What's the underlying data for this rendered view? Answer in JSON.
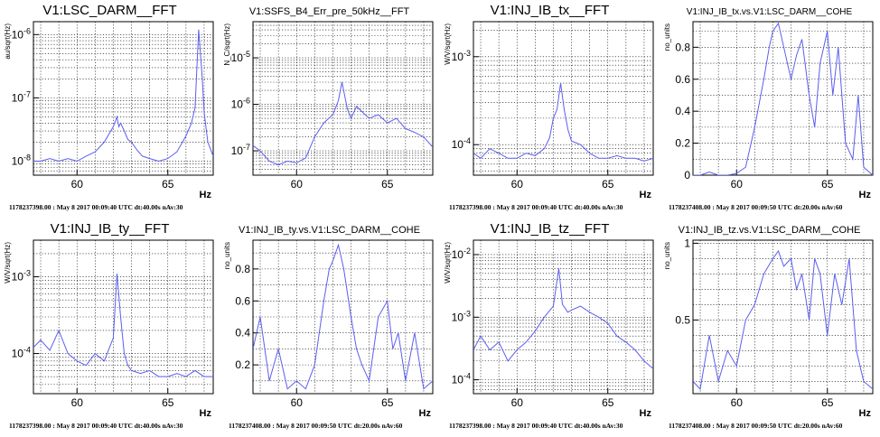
{
  "chart_data": [
    {
      "type": "line",
      "title": "V1:LSC_DARM__FFT",
      "ylabel": "au/sqrt(Hz)",
      "xlabel": "Hz",
      "footer": "1178237398.00 : May  8 2017 00:09:40 UTC dt:40.00s nAv:30",
      "yscale": "log",
      "xlim": [
        57.6,
        67.5
      ],
      "ylim": [
        6e-09,
        1.6e-06
      ],
      "xticks": [
        {
          "v": 60,
          "label": "60"
        },
        {
          "v": 65,
          "label": "65"
        }
      ],
      "yticks": [
        {
          "v": 1e-08,
          "base": "10",
          "exp": "-8"
        },
        {
          "v": 1e-07,
          "base": "10",
          "exp": "-7"
        },
        {
          "v": 1e-06,
          "base": "10",
          "exp": "-6"
        }
      ],
      "grid": true,
      "series": [
        {
          "x": [
            57.6,
            58.0,
            58.5,
            59.0,
            59.5,
            60.0,
            60.5,
            61.0,
            61.5,
            61.8,
            62.0,
            62.2,
            62.3,
            62.4,
            62.6,
            62.8,
            63.0,
            63.3,
            63.6,
            64.0,
            64.5,
            65.0,
            65.5,
            66.0,
            66.3,
            66.5,
            66.7,
            66.9,
            67.0,
            67.2,
            67.5
          ],
          "y": [
            1e-08,
            1e-08,
            1.1e-08,
            1e-08,
            1.1e-08,
            1e-08,
            1.2e-08,
            1.4e-08,
            2e-08,
            2.8e-08,
            3.5e-08,
            5e-08,
            3.5e-08,
            4e-08,
            3e-08,
            2.2e-08,
            2e-08,
            1.5e-08,
            1.2e-08,
            1.1e-08,
            1e-08,
            1.1e-08,
            1.4e-08,
            2.5e-08,
            4e-08,
            7e-08,
            1.2e-06,
            2e-07,
            6e-08,
            2e-08,
            1.2e-08
          ]
        }
      ]
    },
    {
      "type": "line",
      "title": "V1:SSFS_B4_Err_pre_50kHz__FFT",
      "ylabel": "N_C/sqrt(Hz)",
      "xlabel": "",
      "footer": "",
      "yscale": "log",
      "xlim": [
        57.6,
        67.5
      ],
      "ylim": [
        3e-08,
        6e-05
      ],
      "xticks": [
        {
          "v": 60,
          "label": "60"
        },
        {
          "v": 65,
          "label": "65"
        }
      ],
      "yticks": [
        {
          "v": 1e-07,
          "base": "10",
          "exp": "-7"
        },
        {
          "v": 1e-06,
          "base": "10",
          "exp": "-6"
        },
        {
          "v": 1e-05,
          "base": "10",
          "exp": "-5"
        }
      ],
      "grid": true,
      "series": [
        {
          "x": [
            57.6,
            58.0,
            58.5,
            59.0,
            59.5,
            60.0,
            60.5,
            61.0,
            61.5,
            62.0,
            62.3,
            62.5,
            62.8,
            63.0,
            63.3,
            63.6,
            64.0,
            64.5,
            65.0,
            65.5,
            66.0,
            66.5,
            67.0,
            67.5
          ],
          "y": [
            1.3e-07,
            1e-07,
            6e-08,
            5e-08,
            6e-08,
            5.5e-08,
            7e-08,
            2e-07,
            4e-07,
            6e-07,
            1.2e-06,
            3e-06,
            8e-07,
            5e-07,
            9e-07,
            7e-07,
            5e-07,
            6e-07,
            4e-07,
            5e-07,
            3e-07,
            2.5e-07,
            2e-07,
            1.2e-07
          ]
        }
      ]
    },
    {
      "type": "line",
      "title": "V1:INJ_IB_tx__FFT",
      "ylabel": "W/V/sqrt(Hz)",
      "xlabel": "Hz",
      "footer": "1178237398.00 : May  8 2017 00:09:40 UTC dt:40.00s nAv:30",
      "yscale": "log",
      "xlim": [
        57.6,
        67.5
      ],
      "ylim": [
        4.5e-05,
        0.0025
      ],
      "xticks": [
        {
          "v": 60,
          "label": "60"
        },
        {
          "v": 65,
          "label": "65"
        }
      ],
      "yticks": [
        {
          "v": 0.0001,
          "base": "10",
          "exp": "-4"
        },
        {
          "v": 0.001,
          "base": "10",
          "exp": "-3"
        }
      ],
      "grid": true,
      "series": [
        {
          "x": [
            57.6,
            58.0,
            58.5,
            59.0,
            59.5,
            60.0,
            60.5,
            61.0,
            61.5,
            61.8,
            62.0,
            62.2,
            62.4,
            62.6,
            62.8,
            63.0,
            63.5,
            64.0,
            64.5,
            65.0,
            65.5,
            66.0,
            66.5,
            67.0,
            67.5
          ],
          "y": [
            8e-05,
            7e-05,
            9e-05,
            8e-05,
            7e-05,
            7e-05,
            8e-05,
            7.5e-05,
            9e-05,
            0.00012,
            0.0002,
            0.00025,
            0.0005,
            0.00025,
            0.00015,
            0.00011,
            0.0001,
            8e-05,
            7e-05,
            7e-05,
            7.5e-05,
            7e-05,
            7e-05,
            6.5e-05,
            7e-05
          ]
        }
      ]
    },
    {
      "type": "line",
      "title": "V1:INJ_IB_tx.vs.V1:LSC_DARM__COHE",
      "ylabel": "no_units",
      "xlabel": "Hz",
      "footer": "1178237408.00 : May  8 2017 00:09:50 UTC dt:20.00s nAv:60",
      "yscale": "linear",
      "xlim": [
        57.6,
        67.5
      ],
      "ylim": [
        0,
        0.96
      ],
      "xticks": [
        {
          "v": 60,
          "label": "60"
        },
        {
          "v": 65,
          "label": "65"
        }
      ],
      "yticks": [
        {
          "v": 0,
          "label": "0"
        },
        {
          "v": 0.2,
          "label": "0.2"
        },
        {
          "v": 0.4,
          "label": "0.4"
        },
        {
          "v": 0.6,
          "label": "0.6"
        },
        {
          "v": 0.8,
          "label": "0.8"
        }
      ],
      "grid": true,
      "series": [
        {
          "x": [
            57.6,
            58.0,
            58.5,
            59.0,
            59.5,
            60.0,
            60.5,
            61.0,
            61.5,
            61.8,
            62.0,
            62.3,
            62.6,
            63.0,
            63.3,
            63.6,
            64.0,
            64.3,
            64.6,
            65.0,
            65.3,
            65.6,
            66.0,
            66.4,
            66.7,
            67.0,
            67.5
          ],
          "y": [
            0.0,
            0.0,
            0.02,
            0.0,
            0.0,
            0.01,
            0.05,
            0.3,
            0.6,
            0.8,
            0.9,
            0.95,
            0.8,
            0.6,
            0.75,
            0.85,
            0.5,
            0.3,
            0.7,
            0.9,
            0.5,
            0.8,
            0.2,
            0.1,
            0.5,
            0.05,
            0.0
          ]
        }
      ]
    },
    {
      "type": "line",
      "title": "V1:INJ_IB_ty__FFT",
      "ylabel": "W/V/sqrt(Hz)",
      "xlabel": "Hz",
      "footer": "1178237398.00 : May  8 2017 00:09:40 UTC dt:40.00s nAv:30",
      "yscale": "log",
      "xlim": [
        57.6,
        67.5
      ],
      "ylim": [
        3e-05,
        0.003
      ],
      "xticks": [
        {
          "v": 60,
          "label": "60"
        },
        {
          "v": 65,
          "label": "65"
        }
      ],
      "yticks": [
        {
          "v": 0.0001,
          "base": "10",
          "exp": "-4"
        },
        {
          "v": 0.001,
          "base": "10",
          "exp": "-3"
        }
      ],
      "grid": true,
      "series": [
        {
          "x": [
            57.6,
            58.0,
            58.5,
            59.0,
            59.5,
            60.0,
            60.5,
            61.0,
            61.5,
            62.0,
            62.2,
            62.4,
            62.6,
            62.8,
            63.0,
            63.5,
            64.0,
            64.5,
            65.0,
            65.5,
            66.0,
            66.5,
            67.0,
            67.5
          ],
          "y": [
            0.00012,
            0.00015,
            0.00011,
            0.0002,
            0.0001,
            8e-05,
            7e-05,
            0.0001,
            8e-05,
            0.00016,
            0.0011,
            0.0003,
            0.0001,
            7e-05,
            6e-05,
            5.5e-05,
            6e-05,
            5e-05,
            5e-05,
            5.5e-05,
            5e-05,
            6e-05,
            5e-05,
            5e-05
          ]
        }
      ]
    },
    {
      "type": "line",
      "title": "V1:INJ_IB_ty.vs.V1:LSC_DARM__COHE",
      "ylabel": "no_units",
      "xlabel": "Hz",
      "footer": "1178237408.00 : May  8 2017 00:09:50 UTC dt:20.00s nAv:60",
      "yscale": "linear",
      "xlim": [
        57.6,
        67.5
      ],
      "ylim": [
        0.02,
        0.98
      ],
      "xticks": [
        {
          "v": 60,
          "label": "60"
        },
        {
          "v": 65,
          "label": "65"
        }
      ],
      "yticks": [
        {
          "v": 0.2,
          "label": "0.2"
        },
        {
          "v": 0.4,
          "label": "0.4"
        },
        {
          "v": 0.6,
          "label": "0.6"
        },
        {
          "v": 0.8,
          "label": "0.8"
        }
      ],
      "grid": true,
      "series": [
        {
          "x": [
            57.6,
            58.0,
            58.5,
            59.0,
            59.5,
            60.0,
            60.5,
            61.0,
            61.5,
            61.8,
            62.0,
            62.3,
            62.6,
            63.0,
            63.3,
            63.6,
            64.0,
            64.5,
            65.0,
            65.3,
            65.6,
            66.0,
            66.5,
            67.0,
            67.5
          ],
          "y": [
            0.3,
            0.5,
            0.1,
            0.3,
            0.05,
            0.1,
            0.05,
            0.2,
            0.6,
            0.8,
            0.85,
            0.95,
            0.8,
            0.5,
            0.3,
            0.2,
            0.1,
            0.5,
            0.6,
            0.3,
            0.4,
            0.1,
            0.4,
            0.05,
            0.1
          ]
        }
      ]
    },
    {
      "type": "line",
      "title": "V1:INJ_IB_tz__FFT",
      "ylabel": "W/V/sqrt(Hz)",
      "xlabel": "Hz",
      "footer": "1178237398.00 : May  8 2017 00:09:40 UTC dt:40.00s nAv:30",
      "yscale": "log",
      "xlim": [
        57.6,
        67.5
      ],
      "ylim": [
        6e-05,
        0.017
      ],
      "xticks": [
        {
          "v": 60,
          "label": "60"
        },
        {
          "v": 65,
          "label": "65"
        }
      ],
      "yticks": [
        {
          "v": 0.0001,
          "base": "10",
          "exp": "-4"
        },
        {
          "v": 0.001,
          "base": "10",
          "exp": "-3"
        },
        {
          "v": 0.01,
          "base": "10",
          "exp": "-2"
        }
      ],
      "grid": true,
      "series": [
        {
          "x": [
            57.6,
            58.0,
            58.5,
            59.0,
            59.5,
            60.0,
            60.5,
            61.0,
            61.5,
            62.0,
            62.3,
            62.5,
            62.8,
            63.0,
            63.5,
            64.0,
            64.5,
            65.0,
            65.5,
            66.0,
            66.5,
            67.0,
            67.5
          ],
          "y": [
            0.0003,
            0.0005,
            0.0003,
            0.0004,
            0.0002,
            0.0003,
            0.0004,
            0.0006,
            0.001,
            0.0015,
            0.006,
            0.0016,
            0.0012,
            0.0013,
            0.0015,
            0.0012,
            0.001,
            0.0008,
            0.0005,
            0.0004,
            0.0003,
            0.0002,
            0.00015
          ]
        }
      ]
    },
    {
      "type": "line",
      "title": "V1:INJ_IB_tz.vs.V1:LSC_DARM__COHE",
      "ylabel": "no_units",
      "xlabel": "Hz",
      "footer": "1178237408.00 : May  8 2017 00:09:50 UTC dt:20.00s nAv:60",
      "yscale": "linear",
      "xlim": [
        57.6,
        67.5
      ],
      "ylim": [
        0.02,
        1.02
      ],
      "xticks": [
        {
          "v": 60,
          "label": "60"
        },
        {
          "v": 65,
          "label": "65"
        }
      ],
      "yticks": [
        {
          "v": 0.5,
          "label": "0.5"
        },
        {
          "v": 1,
          "label": "1"
        }
      ],
      "grid": true,
      "series": [
        {
          "x": [
            57.6,
            58.0,
            58.5,
            59.0,
            59.5,
            60.0,
            60.5,
            61.0,
            61.5,
            62.0,
            62.3,
            62.6,
            63.0,
            63.3,
            63.6,
            64.0,
            64.3,
            64.6,
            65.0,
            65.4,
            65.8,
            66.2,
            66.6,
            67.0,
            67.5
          ],
          "y": [
            0.1,
            0.05,
            0.4,
            0.1,
            0.3,
            0.2,
            0.5,
            0.6,
            0.8,
            0.9,
            0.95,
            0.85,
            0.9,
            0.7,
            0.8,
            0.5,
            0.9,
            0.8,
            0.4,
            0.8,
            0.6,
            0.9,
            0.3,
            0.1,
            0.05
          ]
        }
      ]
    }
  ]
}
